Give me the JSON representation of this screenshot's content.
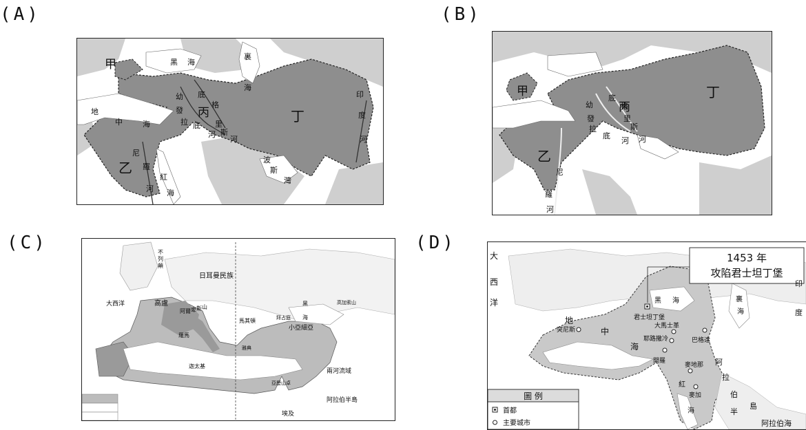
{
  "options": [
    "(A)",
    "(B)",
    "(C)",
    "(D)"
  ],
  "map_a": {
    "regions": {
      "jia": "甲",
      "yi": "乙",
      "bing": "丙",
      "ding": "丁"
    },
    "seas": {
      "black": [
        "黑",
        "海"
      ],
      "caspian": [
        "裏",
        "海"
      ],
      "med": [
        "地",
        "中",
        "海"
      ],
      "red": [
        "紅",
        "海"
      ],
      "persian": [
        "波",
        "斯",
        "灣"
      ]
    },
    "rivers": {
      "euphrates": [
        "幼",
        "發",
        "拉",
        "底",
        "河"
      ],
      "tigris": [
        "底",
        "格",
        "里",
        "斯",
        "河"
      ],
      "nile": [
        "尼",
        "羅",
        "河"
      ],
      "indus": [
        "印",
        "度",
        "河"
      ]
    }
  },
  "map_b": {
    "regions": {
      "jia": "甲",
      "yi": "乙",
      "bing": "丙",
      "ding": "丁"
    },
    "rivers": {
      "euphrates": [
        "幼",
        "發",
        "拉",
        "底",
        "河"
      ],
      "tigris": [
        "底",
        "格",
        "里",
        "斯",
        "河"
      ],
      "nile": [
        "尼",
        "羅",
        "河"
      ]
    }
  },
  "map_c": {
    "labels": {
      "britain": [
        "不",
        "列",
        "顛"
      ],
      "germanic": "日耳曼民族",
      "atlantic": "大西洋",
      "gaul": "高盧",
      "alps": [
        "阿",
        "爾",
        "卑",
        "斯",
        "山"
      ],
      "rome": "羅馬",
      "carthage": "迦太基",
      "macedon": "馬其頓",
      "byzantium": "拜占庭",
      "athens": "雅典",
      "blacksea": [
        "黑",
        "海"
      ],
      "caucasus": "高加索山",
      "asiaminor": "小亞細亞",
      "alexandria": "亞歷山卓",
      "mesopotamia": "兩河流域",
      "arabia": "阿拉伯半島",
      "egypt": "埃及"
    }
  },
  "map_d": {
    "callout": {
      "year": "1453 年",
      "text": "攻陷君士坦丁堡"
    },
    "labels": {
      "atlantic": [
        "大",
        "西",
        "洋"
      ],
      "med": [
        "地",
        "中",
        "海"
      ],
      "blacksea": [
        "黑",
        "海"
      ],
      "caspian": [
        "裏",
        "海"
      ],
      "red": [
        "紅",
        "海"
      ],
      "arabia": [
        "阿",
        "拉",
        "伯",
        "半",
        "島"
      ],
      "arabiansea": "阿拉伯海",
      "india": [
        "印",
        "度"
      ]
    },
    "cities": {
      "constantinople": "君士坦丁堡",
      "tunis": "突尼斯",
      "damascus": "大馬士革",
      "baghdad": "巴格達",
      "jerusalem": "耶路撒冷",
      "cairo": "開羅",
      "medina": "麥地那",
      "mecca": "麥加"
    },
    "legend": {
      "title": "圖 例",
      "capital": "首都",
      "city": "主要城市"
    }
  }
}
